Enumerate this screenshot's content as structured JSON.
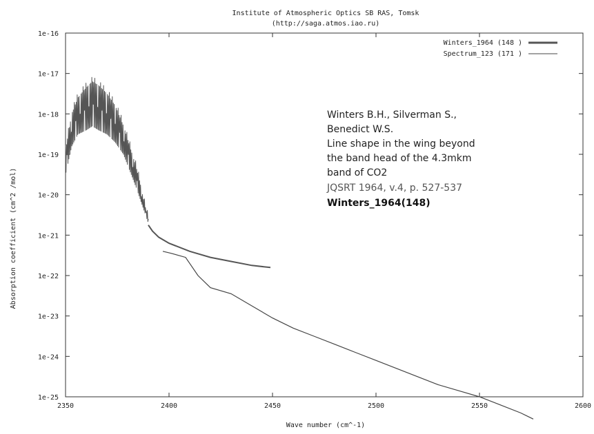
{
  "chart_data": {
    "type": "line",
    "title": "Institute of Atmospheric Optics SB RAS, Tomsk",
    "subtitle": "(http://saga.atmos.iao.ru)",
    "xlabel": "Wave number (cm^-1)",
    "ylabel": "Absorption coefficient (cm^2 /mol)",
    "xlim": [
      2350,
      2600
    ],
    "ylim_exponent": [
      -25,
      -16
    ],
    "y_scale": "log",
    "legend_position": "top-right",
    "x_ticks": [
      "2350",
      "2400",
      "2450",
      "2500",
      "2550",
      "2600"
    ],
    "y_ticks": [
      "1e-25",
      "1e-24",
      "1e-23",
      "1e-22",
      "1e-21",
      "1e-20",
      "1e-19",
      "1e-18",
      "1e-17",
      "1e-16"
    ],
    "series": [
      {
        "name": "Winters_1964 (148 )",
        "style": "thick",
        "color": "#555555",
        "envelope_upper_exp": [
          [
            2350,
            -18.9
          ],
          [
            2353,
            -18.0
          ],
          [
            2356,
            -17.6
          ],
          [
            2360,
            -17.35
          ],
          [
            2363,
            -17.2
          ],
          [
            2366,
            -17.3
          ],
          [
            2370,
            -17.5
          ],
          [
            2374,
            -17.8
          ],
          [
            2378,
            -18.3
          ],
          [
            2381,
            -18.8
          ],
          [
            2384,
            -19.3
          ],
          [
            2386,
            -19.7
          ],
          [
            2388,
            -20.2
          ],
          [
            2390,
            -20.6
          ]
        ],
        "envelope_lower_exp": [
          [
            2350,
            -19.5
          ],
          [
            2353,
            -18.8
          ],
          [
            2356,
            -18.5
          ],
          [
            2360,
            -18.4
          ],
          [
            2363,
            -18.3
          ],
          [
            2366,
            -18.4
          ],
          [
            2370,
            -18.5
          ],
          [
            2374,
            -18.7
          ],
          [
            2378,
            -19.0
          ],
          [
            2381,
            -19.4
          ],
          [
            2384,
            -19.8
          ],
          [
            2386,
            -20.1
          ],
          [
            2388,
            -20.4
          ],
          [
            2390,
            -20.7
          ]
        ],
        "smooth_exp": [
          [
            2390,
            -20.75
          ],
          [
            2392,
            -20.9
          ],
          [
            2395,
            -21.05
          ],
          [
            2400,
            -21.2
          ],
          [
            2410,
            -21.4
          ],
          [
            2420,
            -21.55
          ],
          [
            2430,
            -21.65
          ],
          [
            2440,
            -21.75
          ],
          [
            2449,
            -21.8
          ]
        ]
      },
      {
        "name": "Spectrum_123 (171 )",
        "style": "thin",
        "color": "#444444",
        "points_exp": [
          [
            2397,
            -21.4
          ],
          [
            2401,
            -21.45
          ],
          [
            2408,
            -21.55
          ],
          [
            2414,
            -22.0
          ],
          [
            2420,
            -22.3
          ],
          [
            2430,
            -22.45
          ],
          [
            2440,
            -22.75
          ],
          [
            2450,
            -23.05
          ],
          [
            2460,
            -23.3
          ],
          [
            2470,
            -23.5
          ],
          [
            2480,
            -23.7
          ],
          [
            2490,
            -23.9
          ],
          [
            2500,
            -24.1
          ],
          [
            2510,
            -24.3
          ],
          [
            2520,
            -24.5
          ],
          [
            2530,
            -24.7
          ],
          [
            2540,
            -24.85
          ],
          [
            2550,
            -25.0
          ],
          [
            2560,
            -25.2
          ],
          [
            2570,
            -25.4
          ],
          [
            2576,
            -25.55
          ]
        ]
      }
    ],
    "annotation": {
      "line1": "Winters B.H., Silverman S.,",
      "line2": "Benedict W.S.",
      "line3": "Line shape in the wing beyond",
      "line4": "the band head of the 4.3mkm",
      "line5": "band of CO2",
      "line6": "JQSRT 1964, v.4, p. 527-537",
      "line7": "Winters_1964(148)"
    }
  }
}
